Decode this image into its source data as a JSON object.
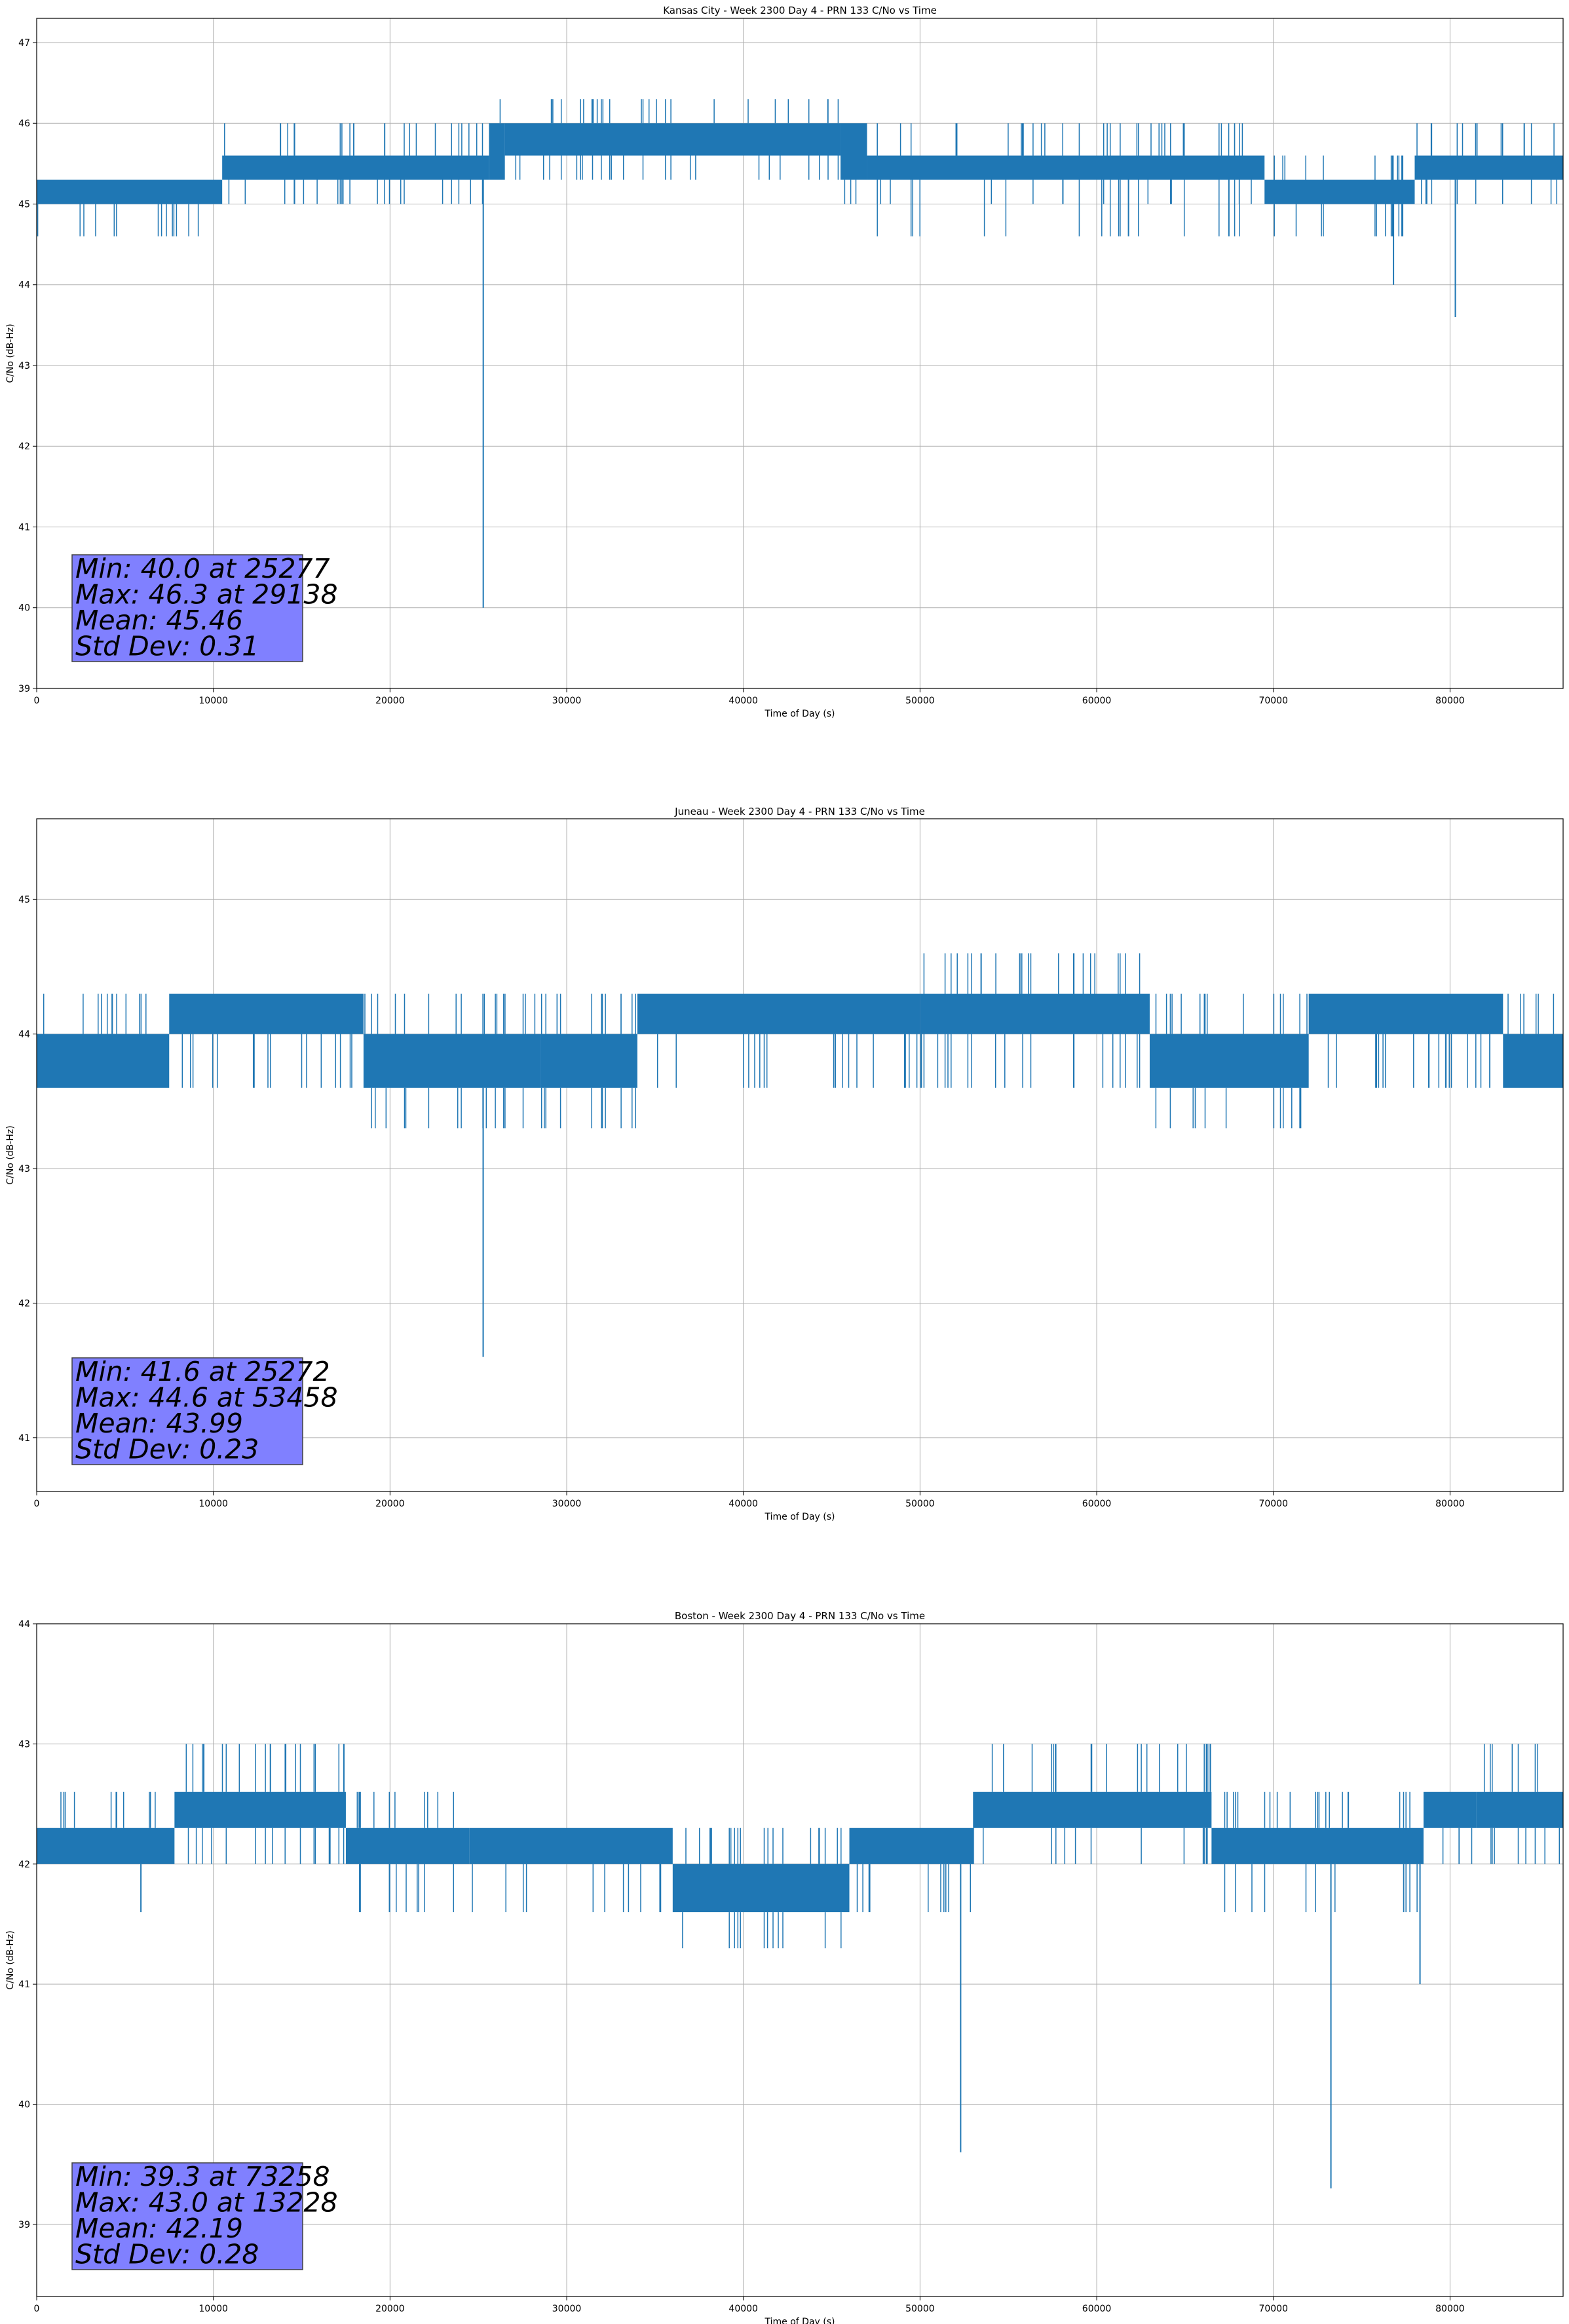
{
  "colors": {
    "line": "#1f77b4",
    "grid": "#b0b0b0",
    "stats_box_fill": "#8080ff",
    "stats_box_edge": "#404040",
    "axes_edge": "#000000",
    "background": "#ffffff"
  },
  "chart_data": [
    {
      "type": "line",
      "title": "Kansas City - Week 2300 Day 4 - PRN 133 C/No vs Time",
      "xlabel": "Time of Day (s)",
      "ylabel": "C/No (dB-Hz)",
      "xlim": [
        0,
        86400
      ],
      "ylim": [
        39,
        47.3
      ],
      "xticks": [
        0,
        10000,
        20000,
        30000,
        40000,
        50000,
        60000,
        70000,
        80000
      ],
      "yticks": [
        39,
        40,
        41,
        42,
        43,
        44,
        45,
        46,
        47
      ],
      "grid": true,
      "legend": "none",
      "stats_box_position": "bottom-left",
      "stats": [
        "Min: 40.0 at 25277",
        "Max: 46.3 at 29138",
        "Mean: 45.46",
        "Std Dev: 0.31"
      ],
      "series": [
        {
          "band_segments": [
            {
              "x": [
                0,
                10500
              ],
              "levels": [
                45.0,
                45.3
              ],
              "up": [],
              "down": [
                44.6
              ]
            },
            {
              "x": [
                10500,
                25600
              ],
              "levels": [
                45.3,
                45.6
              ],
              "up": [
                46.0
              ],
              "down": [
                45.0
              ]
            },
            {
              "x": [
                25600,
                26500
              ],
              "levels": [
                45.3,
                45.6,
                46.0
              ],
              "up": [
                46.3
              ],
              "down": []
            },
            {
              "x": [
                26500,
                45500
              ],
              "levels": [
                45.6,
                46.0
              ],
              "up": [
                46.3
              ],
              "down": [
                45.3
              ]
            },
            {
              "x": [
                45500,
                47000
              ],
              "levels": [
                45.3,
                45.6,
                46.0
              ],
              "up": [],
              "down": [
                45.0
              ]
            },
            {
              "x": [
                47000,
                69500
              ],
              "levels": [
                45.3,
                45.6
              ],
              "up": [
                46.0
              ],
              "down": [
                45.0,
                44.6
              ]
            },
            {
              "x": [
                69500,
                78000
              ],
              "levels": [
                45.0,
                45.3
              ],
              "up": [
                45.6
              ],
              "down": [
                44.6
              ]
            },
            {
              "x": [
                78000,
                86400
              ],
              "levels": [
                45.3,
                45.6
              ],
              "up": [
                46.0
              ],
              "down": [
                45.0
              ]
            }
          ],
          "events": [
            {
              "x": 25277,
              "y": 40.0
            },
            {
              "x": 29138,
              "y": 46.3
            },
            {
              "x": 76800,
              "y": 44.0
            },
            {
              "x": 80300,
              "y": 43.6
            },
            {
              "x": 61800,
              "y": 44.6
            },
            {
              "x": 13800,
              "y": 46.0
            },
            {
              "x": 84200,
              "y": 46.0
            }
          ]
        }
      ]
    },
    {
      "type": "line",
      "title": "Juneau - Week 2300 Day 4 - PRN 133 C/No vs Time",
      "xlabel": "Time of Day (s)",
      "ylabel": "C/No (dB-Hz)",
      "xlim": [
        0,
        86400
      ],
      "ylim": [
        40.6,
        45.6
      ],
      "xticks": [
        0,
        10000,
        20000,
        30000,
        40000,
        50000,
        60000,
        70000,
        80000
      ],
      "yticks": [
        41,
        42,
        43,
        44,
        45
      ],
      "grid": true,
      "legend": "none",
      "stats_box_position": "bottom-left",
      "stats": [
        "Min: 41.6 at 25272",
        "Max: 44.6 at 53458",
        "Mean: 43.99",
        "Std Dev: 0.23"
      ],
      "series": [
        {
          "band_segments": [
            {
              "x": [
                0,
                7500
              ],
              "levels": [
                43.6,
                44.0
              ],
              "up": [
                44.3
              ],
              "down": []
            },
            {
              "x": [
                7500,
                18500
              ],
              "levels": [
                44.0,
                44.3
              ],
              "up": [],
              "down": [
                43.6
              ]
            },
            {
              "x": [
                18500,
                28500
              ],
              "levels": [
                43.6,
                44.0
              ],
              "up": [
                44.3
              ],
              "down": [
                43.3
              ]
            },
            {
              "x": [
                28500,
                34000
              ],
              "levels": [
                43.6,
                44.0
              ],
              "up": [
                44.3
              ],
              "down": [
                43.3
              ]
            },
            {
              "x": [
                34000,
                50000
              ],
              "levels": [
                44.0,
                44.3
              ],
              "up": [],
              "down": [
                43.6
              ]
            },
            {
              "x": [
                50000,
                63000
              ],
              "levels": [
                44.0,
                44.3
              ],
              "up": [
                44.6
              ],
              "down": [
                43.6
              ]
            },
            {
              "x": [
                63000,
                72000
              ],
              "levels": [
                43.6,
                44.0
              ],
              "up": [
                44.3
              ],
              "down": [
                43.3
              ]
            },
            {
              "x": [
                72000,
                83000
              ],
              "levels": [
                44.0,
                44.3
              ],
              "up": [],
              "down": [
                43.6
              ]
            },
            {
              "x": [
                83000,
                86400
              ],
              "levels": [
                43.6,
                44.0
              ],
              "up": [
                44.3
              ],
              "down": []
            }
          ],
          "events": [
            {
              "x": 25272,
              "y": 41.6
            },
            {
              "x": 53458,
              "y": 44.6
            }
          ]
        }
      ]
    },
    {
      "type": "line",
      "title": "Boston - Week 2300 Day 4 - PRN 133 C/No vs Time",
      "xlabel": "Time of Day (s)",
      "ylabel": "C/No (dB-Hz)",
      "xlim": [
        0,
        86400
      ],
      "ylim": [
        38.4,
        44
      ],
      "xticks": [
        0,
        10000,
        20000,
        30000,
        40000,
        50000,
        60000,
        70000,
        80000
      ],
      "yticks": [
        39,
        40,
        41,
        42,
        43,
        44
      ],
      "grid": true,
      "legend": "none",
      "stats_box_position": "bottom-left",
      "stats": [
        "Min: 39.3 at 73258",
        "Max: 43.0 at 13228",
        "Mean: 42.19",
        "Std Dev: 0.28"
      ],
      "series": [
        {
          "band_segments": [
            {
              "x": [
                0,
                7800
              ],
              "levels": [
                42.0,
                42.3
              ],
              "up": [
                42.6
              ],
              "down": []
            },
            {
              "x": [
                7800,
                17500
              ],
              "levels": [
                42.3,
                42.6
              ],
              "up": [
                43.0
              ],
              "down": [
                42.0
              ]
            },
            {
              "x": [
                17500,
                24500
              ],
              "levels": [
                42.0,
                42.3
              ],
              "up": [
                42.6
              ],
              "down": [
                41.6
              ]
            },
            {
              "x": [
                24500,
                36000
              ],
              "levels": [
                42.0,
                42.3
              ],
              "up": [],
              "down": [
                41.6
              ]
            },
            {
              "x": [
                36000,
                46000
              ],
              "levels": [
                41.6,
                42.0
              ],
              "up": [
                42.3
              ],
              "down": [
                41.3
              ]
            },
            {
              "x": [
                46000,
                53000
              ],
              "levels": [
                42.0,
                42.3
              ],
              "up": [],
              "down": [
                41.6
              ]
            },
            {
              "x": [
                53000,
                66500
              ],
              "levels": [
                42.3,
                42.6
              ],
              "up": [
                43.0
              ],
              "down": [
                42.0
              ]
            },
            {
              "x": [
                66500,
                78500
              ],
              "levels": [
                42.0,
                42.3
              ],
              "up": [
                42.6
              ],
              "down": [
                41.6
              ]
            },
            {
              "x": [
                78500,
                81500
              ],
              "levels": [
                42.3,
                42.6
              ],
              "up": [],
              "down": [
                42.0
              ]
            },
            {
              "x": [
                81500,
                86400
              ],
              "levels": [
                42.3,
                42.6
              ],
              "up": [
                43.0
              ],
              "down": [
                42.0
              ]
            }
          ],
          "events": [
            {
              "x": 73258,
              "y": 39.3
            },
            {
              "x": 52300,
              "y": 39.6
            },
            {
              "x": 78300,
              "y": 41.0
            },
            {
              "x": 13228,
              "y": 43.0
            },
            {
              "x": 5900,
              "y": 41.6
            }
          ]
        }
      ]
    }
  ]
}
